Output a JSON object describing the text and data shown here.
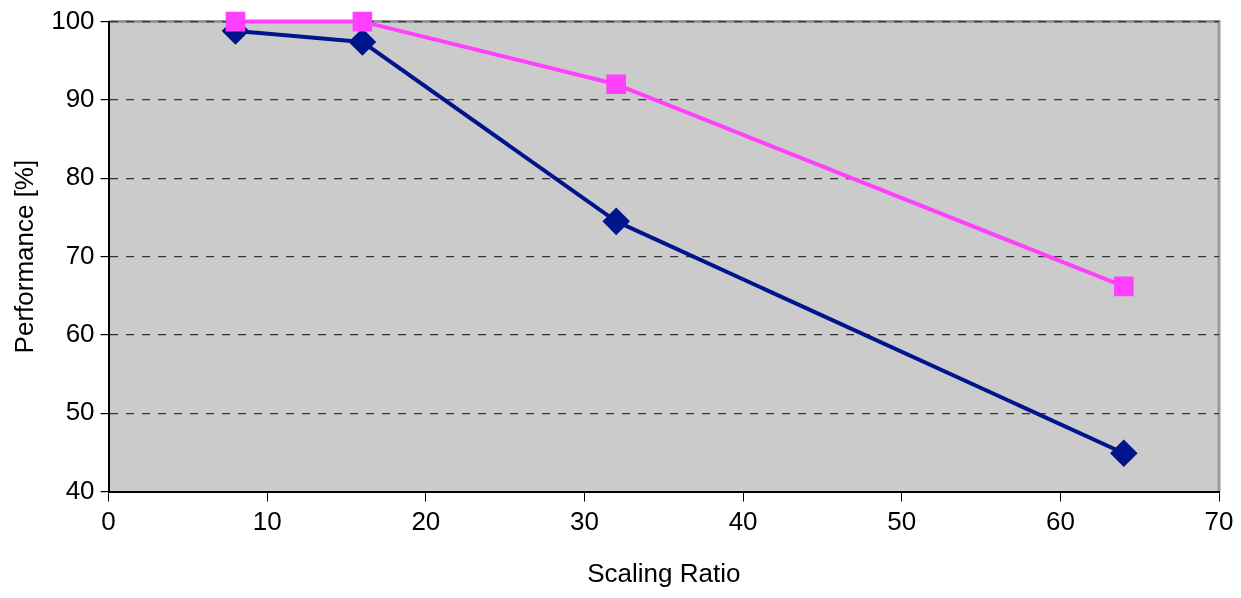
{
  "chart_data": {
    "type": "line",
    "xlabel": "Scaling Ratio",
    "ylabel": "Performance [%]",
    "x": [
      8,
      16,
      32,
      64
    ],
    "series": [
      {
        "color": "#00148c",
        "values": [
          98.8,
          97.4,
          74.5,
          44.9
        ],
        "marker": "diamond"
      },
      {
        "color": "#ff40ff",
        "values": [
          100,
          100,
          92,
          66.2
        ],
        "marker": "square"
      }
    ],
    "xlim": [
      0,
      70
    ],
    "xticks": [
      0,
      10,
      20,
      30,
      40,
      50,
      60,
      70
    ],
    "ylim": [
      40,
      100
    ],
    "yticks": [
      40,
      50,
      60,
      70,
      80,
      90,
      100
    ],
    "grid": "y",
    "legend": false
  }
}
